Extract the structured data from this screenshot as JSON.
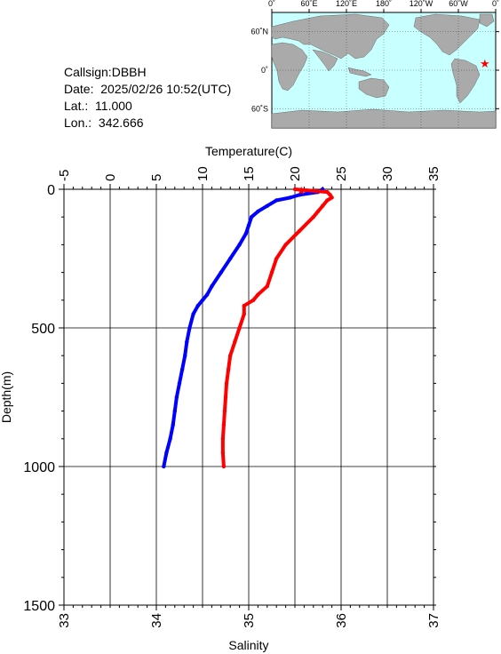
{
  "station": {
    "callsign_label": "Callsign:",
    "callsign": "DBBH",
    "date_label": "Date:",
    "date": "2025/02/26 10:52(UTC)",
    "lat_label": "Lat.:",
    "lat": "11.000",
    "lon_label": "Lon.:",
    "lon": "342.666"
  },
  "map": {
    "lon_labels": [
      "0˚",
      "60˚E",
      "120˚E",
      "180˚",
      "120˚W",
      "60˚W",
      "0˚"
    ],
    "lat_labels": [
      "60˚N",
      "0˚",
      "60˚S"
    ],
    "ocean_color": "#c8ffff",
    "land_color": "#aaaaaa",
    "marker_color": "#ff0000",
    "marker": {
      "lon": 342.666,
      "lat": 11.0
    }
  },
  "chart_data": {
    "type": "line",
    "ylabel": "Depth(m)",
    "ylim": [
      1500,
      0
    ],
    "yticks": [
      0,
      500,
      1000,
      1500
    ],
    "top_axis": {
      "label": "Temperature(C)",
      "range": [
        -5,
        35
      ],
      "ticks": [
        "-5",
        "0",
        "5",
        "10",
        "15",
        "20",
        "25",
        "30",
        "35"
      ]
    },
    "bottom_axis": {
      "label": "Salinity",
      "range": [
        33,
        37
      ],
      "ticks": [
        "33",
        "34",
        "35",
        "36",
        "37"
      ]
    },
    "grid": true,
    "series": [
      {
        "color": "#0000ff",
        "axis": "top",
        "depth": [
          0,
          10,
          20,
          30,
          40,
          60,
          80,
          100,
          130,
          160,
          200,
          250,
          300,
          350,
          380,
          400,
          420,
          450,
          500,
          550,
          600,
          650,
          700,
          750,
          800,
          850,
          900,
          950,
          1000
        ],
        "values": [
          23.0,
          22.5,
          20.5,
          19.5,
          18.0,
          17.0,
          16.0,
          15.3,
          15.0,
          14.7,
          14.0,
          13.0,
          12.0,
          11.0,
          10.5,
          10.0,
          9.5,
          9.0,
          8.6,
          8.3,
          8.1,
          7.8,
          7.5,
          7.2,
          7.0,
          6.8,
          6.5,
          6.1,
          5.8
        ]
      },
      {
        "color": "#ff0000",
        "axis": "bottom",
        "depth": [
          0,
          10,
          20,
          30,
          40,
          60,
          80,
          100,
          150,
          200,
          250,
          300,
          350,
          380,
          400,
          420,
          450,
          500,
          550,
          600,
          650,
          700,
          750,
          800,
          850,
          900,
          950,
          1000
        ],
        "values": [
          35.5,
          35.85,
          35.88,
          35.9,
          35.85,
          35.8,
          35.75,
          35.7,
          35.55,
          35.4,
          35.3,
          35.25,
          35.2,
          35.1,
          35.05,
          34.95,
          34.95,
          34.9,
          34.85,
          34.8,
          34.78,
          34.76,
          34.75,
          34.74,
          34.73,
          34.72,
          34.72,
          34.73
        ]
      }
    ]
  }
}
